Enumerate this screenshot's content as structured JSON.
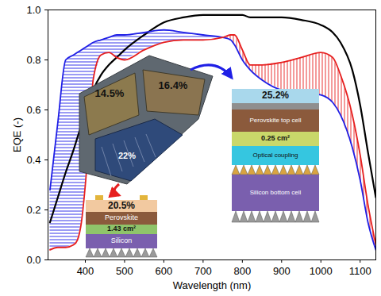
{
  "chart_data": {
    "type": "line",
    "xlabel": "Wavelength (nm)",
    "ylabel": "EQE (-)",
    "xlim": [
      305,
      1140
    ],
    "ylim": [
      0,
      1
    ],
    "xticks": [
      400,
      500,
      600,
      700,
      800,
      900,
      1000,
      1100
    ],
    "yticks": [
      {
        "value": 0,
        "label": "0.0"
      },
      {
        "value": 0.2,
        "label": "0.2"
      },
      {
        "value": 0.4,
        "label": "0.4"
      },
      {
        "value": 0.6,
        "label": "0.6"
      },
      {
        "value": 0.8,
        "label": "0.8"
      },
      {
        "value": 1,
        "label": "1.0"
      }
    ],
    "x": [
      310,
      330,
      350,
      370,
      380,
      390,
      400,
      410,
      420,
      440,
      460,
      480,
      500,
      550,
      600,
      650,
      700,
      750,
      770,
      780,
      800,
      820,
      850,
      900,
      950,
      1000,
      1030,
      1050,
      1080,
      1100,
      1120,
      1140
    ],
    "series": [
      {
        "color": "#000000",
        "values": [
          0.15,
          0.25,
          0.35,
          0.44,
          0.49,
          0.54,
          0.59,
          0.64,
          0.68,
          0.74,
          0.78,
          0.81,
          0.84,
          0.9,
          0.95,
          0.97,
          0.98,
          0.98,
          0.98,
          0.98,
          0.98,
          0.97,
          0.97,
          0.97,
          0.96,
          0.94,
          0.91,
          0.87,
          0.76,
          0.62,
          0.43,
          0.25
        ]
      },
      {
        "color": "#1f1fe6",
        "values": [
          0.28,
          0.55,
          0.8,
          0.82,
          0.83,
          0.84,
          0.85,
          0.86,
          0.87,
          0.88,
          0.89,
          0.9,
          0.9,
          0.91,
          0.92,
          0.91,
          0.9,
          0.89,
          0.88,
          0.86,
          0.8,
          0.76,
          0.72,
          0.68,
          0.67,
          0.66,
          0.63,
          0.58,
          0.45,
          0.32,
          0.15,
          0.04
        ]
      },
      {
        "color": "#e61f1f",
        "values": [
          0.04,
          0.05,
          0.05,
          0.06,
          0.08,
          0.15,
          0.3,
          0.5,
          0.72,
          0.82,
          0.83,
          0.81,
          0.8,
          0.84,
          0.87,
          0.88,
          0.88,
          0.89,
          0.9,
          0.9,
          0.84,
          0.78,
          0.78,
          0.79,
          0.81,
          0.83,
          0.81,
          0.74,
          0.58,
          0.42,
          0.22,
          0.06
        ]
      }
    ],
    "annotations": {
      "photo_efficiencies": [
        "14.5%",
        "16.4%",
        "22%"
      ],
      "four_terminal": {
        "efficiency": "25.2%",
        "area": "0.25 cm²",
        "layers": [
          "Perovskite top cell",
          "Optical coupling",
          "Silicon bottom cell"
        ]
      },
      "two_terminal": {
        "efficiency": "20.5%",
        "area": "1.43 cm²",
        "layers": [
          "Perovskite",
          "Silicon"
        ]
      }
    }
  }
}
